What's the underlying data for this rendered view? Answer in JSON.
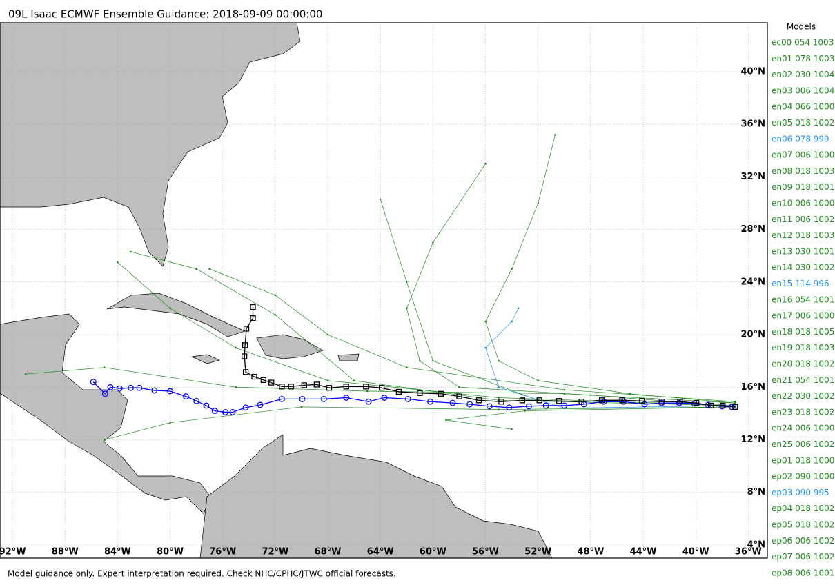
{
  "title": "09L Isaac ECMWF Ensemble Guidance: 2018-09-09 00:00:00",
  "footer": "Model guidance only. Expert interpretation required. Check NHC/CPHC/JTWC official forecasts.",
  "map": {
    "lonlim": [
      -92.95,
      -34.55
    ],
    "latlim": [
      3.0,
      43.72
    ],
    "grid": true,
    "land_color": "#bebebe",
    "lon_ticks": [
      {
        "value": -92,
        "label": "92°W"
      },
      {
        "value": -88,
        "label": "88°W"
      },
      {
        "value": -84,
        "label": "84°W"
      },
      {
        "value": -80,
        "label": "80°W"
      },
      {
        "value": -76,
        "label": "76°W"
      },
      {
        "value": -72,
        "label": "72°W"
      },
      {
        "value": -68,
        "label": "68°W"
      },
      {
        "value": -64,
        "label": "64°W"
      },
      {
        "value": -60,
        "label": "60°W"
      },
      {
        "value": -56,
        "label": "56°W"
      },
      {
        "value": -52,
        "label": "52°W"
      },
      {
        "value": -48,
        "label": "48°W"
      },
      {
        "value": -44,
        "label": "44°W"
      },
      {
        "value": -40,
        "label": "40°W"
      },
      {
        "value": -36,
        "label": "36°W"
      }
    ],
    "lat_ticks": [
      {
        "value": 4,
        "label": "4°N"
      },
      {
        "value": 8,
        "label": "8°N"
      },
      {
        "value": 12,
        "label": "12°N"
      },
      {
        "value": 16,
        "label": "16°N"
      },
      {
        "value": 20,
        "label": "20°N"
      },
      {
        "value": 24,
        "label": "24°N"
      },
      {
        "value": 28,
        "label": "28°N"
      },
      {
        "value": 32,
        "label": "32°N"
      },
      {
        "value": 36,
        "label": "36°N"
      },
      {
        "value": 40,
        "label": "40°N"
      }
    ],
    "tracks": [
      {
        "color": "#228b22",
        "marker": "dot",
        "lon": [
          -37,
          -45,
          -52,
          -55,
          -56,
          -54,
          -52,
          -50.7
        ],
        "lat": [
          14.8,
          15.5,
          16.5,
          18,
          21,
          25,
          30,
          35.2
        ]
      },
      {
        "color": "#228b22",
        "marker": "dot",
        "lon": [
          -38,
          -48,
          -58,
          -61,
          -62,
          -60,
          -56
        ],
        "lat": [
          14.6,
          15.4,
          16,
          18,
          22,
          27,
          33
        ]
      },
      {
        "color": "#228b22",
        "marker": "dot",
        "lon": [
          -37,
          -50,
          -65,
          -75,
          -85,
          -91
        ],
        "lat": [
          14.8,
          15.5,
          15.7,
          16,
          17.5,
          17
        ]
      },
      {
        "color": "#228b22",
        "marker": "dot",
        "lon": [
          -37,
          -55,
          -68,
          -75,
          -80,
          -84
        ],
        "lat": [
          14.6,
          15.2,
          16.5,
          19,
          22,
          25.5
        ]
      },
      {
        "color": "#228b22",
        "marker": "dot",
        "lon": [
          -37,
          -55,
          -70,
          -80,
          -85
        ],
        "lat": [
          14.5,
          14.3,
          14.5,
          13.3,
          12
        ]
      },
      {
        "color": "#228b22",
        "marker": "dot",
        "lon": [
          -37,
          -50,
          -62,
          -68,
          -72,
          -77
        ],
        "lat": [
          14.9,
          15.8,
          17.5,
          20,
          23,
          25
        ]
      },
      {
        "color": "#228b22",
        "marker": "dot",
        "lon": [
          -38,
          -52,
          -60,
          -62,
          -64
        ],
        "lat": [
          14.7,
          15,
          18,
          24,
          30.3
        ]
      },
      {
        "color": "#228b22",
        "marker": "dot",
        "lon": [
          -37,
          -53,
          -59,
          -54
        ],
        "lat": [
          14.5,
          14.2,
          13.5,
          12.8
        ]
      },
      {
        "color": "#228b22",
        "marker": "dot",
        "lon": [
          -37,
          -55,
          -66,
          -72,
          -78,
          -83
        ],
        "lat": [
          14.6,
          15,
          16.5,
          21.5,
          25,
          26.3
        ]
      },
      {
        "color": "#1e90ff",
        "marker": "dot",
        "lon": [
          -37,
          -50,
          -55,
          -56,
          -54,
          -53.5
        ],
        "lat": [
          14.6,
          14.4,
          16,
          19,
          21,
          22
        ]
      },
      {
        "color": "#0000ff",
        "marker": "circle",
        "lon": [
          -37.27,
          -38.0,
          -39.06,
          -40.1,
          -41.26,
          -42.6,
          -43.9,
          -45.5,
          -47.0,
          -48.5,
          -50.0,
          -51.4,
          -52.7,
          -54.2,
          -55.7,
          -57.2,
          -58.5,
          -60.2,
          -61.9,
          -63.7,
          -64.9,
          -66.6,
          -68.3,
          -69.95,
          -71.5,
          -73.15,
          -74.25,
          -75.25,
          -75.8,
          -76.6,
          -77.25,
          -78.0,
          -78.8,
          -80.0,
          -81.2,
          -82.35,
          -83.0,
          -83.85,
          -84.55,
          -84.95,
          -85.85
        ],
        "lat": [
          14.5,
          14.55,
          14.65,
          14.75,
          14.8,
          14.8,
          14.7,
          14.9,
          14.9,
          14.7,
          14.6,
          14.6,
          14.55,
          14.45,
          14.55,
          14.7,
          14.8,
          14.9,
          15.1,
          15.2,
          14.9,
          15.2,
          15.1,
          15.1,
          15.1,
          14.65,
          14.45,
          14.1,
          14.1,
          14.2,
          14.6,
          14.95,
          15.3,
          15.7,
          15.75,
          15.95,
          15.95,
          15.9,
          16.0,
          15.5,
          16.4
        ]
      },
      {
        "color": "#000000",
        "marker": "square",
        "lon": [
          -37.0,
          -37.95,
          -38.85,
          -39.95,
          -41.2,
          -42.6,
          -44.1,
          -45.6,
          -47.15,
          -48.7,
          -50.4,
          -51.9,
          -53.2,
          -54.8,
          -56.5,
          -58.0,
          -59.4,
          -61.0,
          -62.6,
          -63.9,
          -65.1,
          -66.6,
          -67.9,
          -68.85,
          -69.8,
          -70.8,
          -71.5,
          -72.3,
          -72.9,
          -73.6,
          -74.25,
          -74.35,
          -74.3,
          -74.2,
          -73.7,
          -73.7
        ],
        "lat": [
          14.5,
          14.6,
          14.6,
          14.8,
          14.9,
          14.9,
          14.95,
          15.0,
          15.0,
          14.9,
          14.95,
          15.0,
          15.0,
          14.9,
          15.0,
          15.3,
          15.5,
          15.55,
          15.65,
          15.95,
          16.05,
          16.05,
          15.95,
          16.2,
          16.15,
          16.05,
          16.05,
          16.35,
          16.55,
          16.8,
          17.15,
          18.35,
          19.2,
          20.45,
          21.25,
          22.1
        ]
      }
    ]
  },
  "legend": {
    "title": "Models",
    "entries": [
      {
        "label": "ec00 054 1003",
        "color": "#228b22"
      },
      {
        "label": "en01 078 1003",
        "color": "#228b22"
      },
      {
        "label": "en02 030 1004",
        "color": "#228b22"
      },
      {
        "label": "en03 006 1004",
        "color": "#228b22"
      },
      {
        "label": "en04 066 1000",
        "color": "#228b22"
      },
      {
        "label": "en05 018 1002",
        "color": "#228b22"
      },
      {
        "label": "en06 078 999",
        "color": "#1e90ff"
      },
      {
        "label": "en07 006 1000",
        "color": "#228b22"
      },
      {
        "label": "en08 018 1003",
        "color": "#228b22"
      },
      {
        "label": "en09 018 1001",
        "color": "#228b22"
      },
      {
        "label": "en10 006 1000",
        "color": "#228b22"
      },
      {
        "label": "en11 006 1002",
        "color": "#228b22"
      },
      {
        "label": "en12 018 1003",
        "color": "#228b22"
      },
      {
        "label": "en13 030 1001",
        "color": "#228b22"
      },
      {
        "label": "en14 030 1002",
        "color": "#228b22"
      },
      {
        "label": "en15 114 996",
        "color": "#1e90ff"
      },
      {
        "label": "en16 054 1001",
        "color": "#228b22"
      },
      {
        "label": "en17 006 1000",
        "color": "#228b22"
      },
      {
        "label": "en18 018 1005",
        "color": "#228b22"
      },
      {
        "label": "en19 018 1003",
        "color": "#228b22"
      },
      {
        "label": "en20 018 1002",
        "color": "#228b22"
      },
      {
        "label": "en21 054 1001",
        "color": "#228b22"
      },
      {
        "label": "en22 030 1002",
        "color": "#228b22"
      },
      {
        "label": "en23 018 1002",
        "color": "#228b22"
      },
      {
        "label": "en24 006 1000",
        "color": "#228b22"
      },
      {
        "label": "en25 006 1002",
        "color": "#228b22"
      },
      {
        "label": "ep01 018 1000",
        "color": "#228b22"
      },
      {
        "label": "ep02 090 1000",
        "color": "#228b22"
      },
      {
        "label": "ep03 090 995",
        "color": "#1e90ff"
      },
      {
        "label": "ep04 018 1002",
        "color": "#228b22"
      },
      {
        "label": "ep05 018 1002",
        "color": "#228b22"
      },
      {
        "label": "ep06 006 1002",
        "color": "#228b22"
      },
      {
        "label": "ep07 006 1002",
        "color": "#228b22"
      },
      {
        "label": "ep08 006 1001",
        "color": "#228b22"
      }
    ]
  }
}
